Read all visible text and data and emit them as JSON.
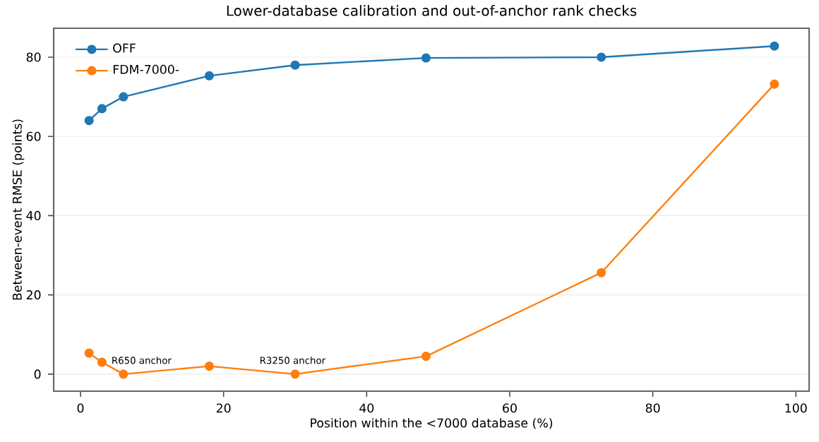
{
  "chart_data": {
    "type": "line",
    "title": "Lower-database calibration and out-of-anchor rank checks",
    "xlabel": "Position within the <7000 database (%)",
    "ylabel": "Between-event RMSE (points)",
    "x": [
      1.2,
      3,
      6,
      18,
      30,
      48.3,
      72.8,
      97
    ],
    "series": [
      {
        "name": "OFF",
        "color": "#1f77b4",
        "values": [
          64,
          67,
          70,
          75.3,
          78,
          79.8,
          80,
          82.8
        ]
      },
      {
        "name": "FDM-7000-",
        "color": "#ff7f0e",
        "values": [
          5.3,
          3,
          0,
          2,
          0,
          4.5,
          25.6,
          73.2
        ]
      }
    ],
    "annotations": [
      "R650 anchor",
      "R3250 anchor"
    ],
    "xlim": [
      -3.75,
      101.85
    ],
    "ylim": [
      -4.3,
      87.3
    ],
    "xticks": [
      0,
      20,
      40,
      60,
      80,
      100
    ],
    "yticks": [
      0,
      20,
      40,
      60,
      80
    ],
    "grid": "y",
    "legend": "top left",
    "marker": "circle",
    "line_style": "solid"
  }
}
